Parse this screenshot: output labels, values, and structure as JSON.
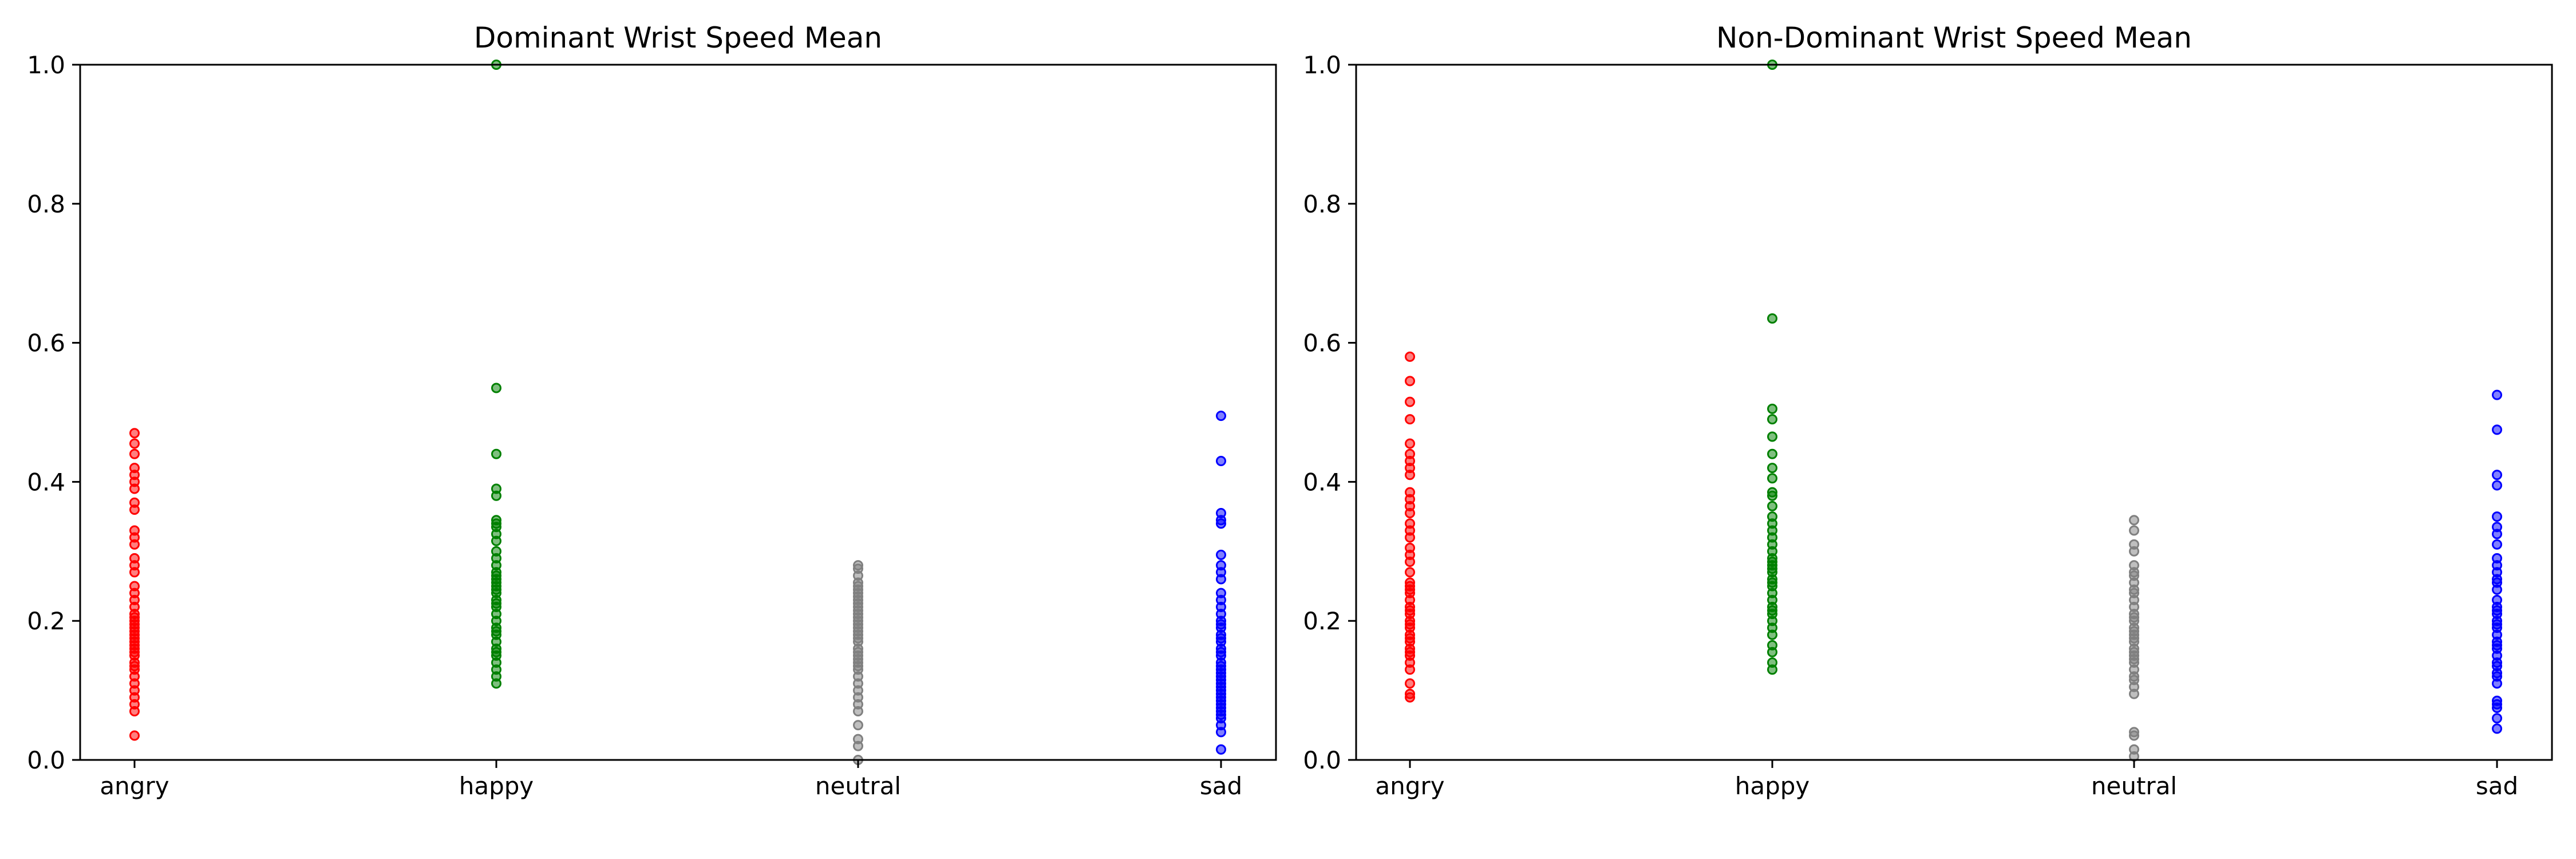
{
  "figure": {
    "panels": 2
  },
  "chart_data": [
    {
      "type": "scatter",
      "title": "Dominant Wrist Speed Mean",
      "xlabel": "",
      "ylabel": "",
      "categories": [
        "angry",
        "happy",
        "neutral",
        "sad"
      ],
      "ylim": [
        0,
        1.0
      ],
      "yticks": [
        "0.0",
        "0.2",
        "0.4",
        "0.6",
        "0.8",
        "1.0"
      ],
      "grid": false,
      "legend": "none",
      "series": [
        {
          "category": "angry",
          "color": "#ff0000",
          "values": [
            0.035,
            0.07,
            0.08,
            0.09,
            0.1,
            0.11,
            0.12,
            0.13,
            0.135,
            0.14,
            0.15,
            0.155,
            0.16,
            0.165,
            0.17,
            0.175,
            0.18,
            0.185,
            0.19,
            0.195,
            0.2,
            0.205,
            0.21,
            0.22,
            0.23,
            0.24,
            0.25,
            0.27,
            0.28,
            0.29,
            0.31,
            0.32,
            0.33,
            0.36,
            0.37,
            0.39,
            0.4,
            0.41,
            0.42,
            0.44,
            0.455,
            0.47
          ]
        },
        {
          "category": "happy",
          "color": "#008000",
          "values": [
            0.11,
            0.12,
            0.13,
            0.14,
            0.15,
            0.155,
            0.16,
            0.17,
            0.18,
            0.185,
            0.19,
            0.2,
            0.21,
            0.22,
            0.225,
            0.23,
            0.24,
            0.245,
            0.25,
            0.255,
            0.26,
            0.265,
            0.27,
            0.28,
            0.29,
            0.3,
            0.315,
            0.325,
            0.335,
            0.34,
            0.345,
            0.38,
            0.39,
            0.44,
            0.535,
            1.0
          ]
        },
        {
          "category": "neutral",
          "color": "#808080",
          "values": [
            0.0,
            0.02,
            0.03,
            0.05,
            0.07,
            0.08,
            0.09,
            0.1,
            0.11,
            0.12,
            0.13,
            0.135,
            0.14,
            0.145,
            0.15,
            0.155,
            0.16,
            0.17,
            0.175,
            0.18,
            0.185,
            0.19,
            0.195,
            0.2,
            0.205,
            0.21,
            0.215,
            0.22,
            0.225,
            0.23,
            0.235,
            0.24,
            0.245,
            0.25,
            0.255,
            0.265,
            0.275,
            0.28
          ]
        },
        {
          "category": "sad",
          "color": "#0000ff",
          "values": [
            0.015,
            0.04,
            0.05,
            0.06,
            0.065,
            0.07,
            0.075,
            0.08,
            0.085,
            0.09,
            0.095,
            0.1,
            0.105,
            0.11,
            0.115,
            0.12,
            0.125,
            0.13,
            0.135,
            0.14,
            0.15,
            0.155,
            0.16,
            0.17,
            0.175,
            0.18,
            0.19,
            0.195,
            0.2,
            0.21,
            0.22,
            0.23,
            0.24,
            0.26,
            0.27,
            0.28,
            0.295,
            0.34,
            0.345,
            0.355,
            0.43,
            0.495
          ]
        }
      ]
    },
    {
      "type": "scatter",
      "title": "Non-Dominant Wrist Speed Mean",
      "xlabel": "",
      "ylabel": "",
      "categories": [
        "angry",
        "happy",
        "neutral",
        "sad"
      ],
      "ylim": [
        0,
        1.0
      ],
      "yticks": [
        "0.0",
        "0.2",
        "0.4",
        "0.6",
        "0.8",
        "1.0"
      ],
      "grid": false,
      "legend": "none",
      "series": [
        {
          "category": "angry",
          "color": "#ff0000",
          "values": [
            0.09,
            0.095,
            0.11,
            0.13,
            0.14,
            0.15,
            0.155,
            0.16,
            0.17,
            0.175,
            0.18,
            0.19,
            0.195,
            0.2,
            0.21,
            0.215,
            0.22,
            0.23,
            0.24,
            0.245,
            0.25,
            0.255,
            0.27,
            0.285,
            0.295,
            0.305,
            0.32,
            0.33,
            0.34,
            0.355,
            0.365,
            0.375,
            0.385,
            0.41,
            0.42,
            0.43,
            0.44,
            0.455,
            0.49,
            0.515,
            0.545,
            0.58
          ]
        },
        {
          "category": "happy",
          "color": "#008000",
          "values": [
            0.13,
            0.14,
            0.155,
            0.165,
            0.18,
            0.19,
            0.2,
            0.21,
            0.215,
            0.22,
            0.23,
            0.24,
            0.25,
            0.255,
            0.26,
            0.27,
            0.275,
            0.28,
            0.285,
            0.29,
            0.3,
            0.31,
            0.32,
            0.33,
            0.34,
            0.35,
            0.365,
            0.38,
            0.385,
            0.405,
            0.42,
            0.44,
            0.465,
            0.49,
            0.505,
            0.635,
            1.0
          ]
        },
        {
          "category": "neutral",
          "color": "#808080",
          "values": [
            0.005,
            0.015,
            0.035,
            0.04,
            0.095,
            0.105,
            0.115,
            0.12,
            0.13,
            0.14,
            0.145,
            0.15,
            0.155,
            0.16,
            0.17,
            0.175,
            0.18,
            0.185,
            0.19,
            0.2,
            0.205,
            0.21,
            0.22,
            0.23,
            0.24,
            0.245,
            0.255,
            0.265,
            0.27,
            0.28,
            0.3,
            0.31,
            0.33,
            0.345
          ]
        },
        {
          "category": "sad",
          "color": "#0000ff",
          "values": [
            0.045,
            0.06,
            0.075,
            0.08,
            0.085,
            0.11,
            0.12,
            0.125,
            0.135,
            0.14,
            0.15,
            0.16,
            0.165,
            0.17,
            0.18,
            0.19,
            0.195,
            0.2,
            0.21,
            0.215,
            0.22,
            0.23,
            0.245,
            0.255,
            0.26,
            0.27,
            0.28,
            0.29,
            0.31,
            0.325,
            0.335,
            0.35,
            0.395,
            0.41,
            0.475,
            0.525
          ]
        }
      ]
    }
  ]
}
